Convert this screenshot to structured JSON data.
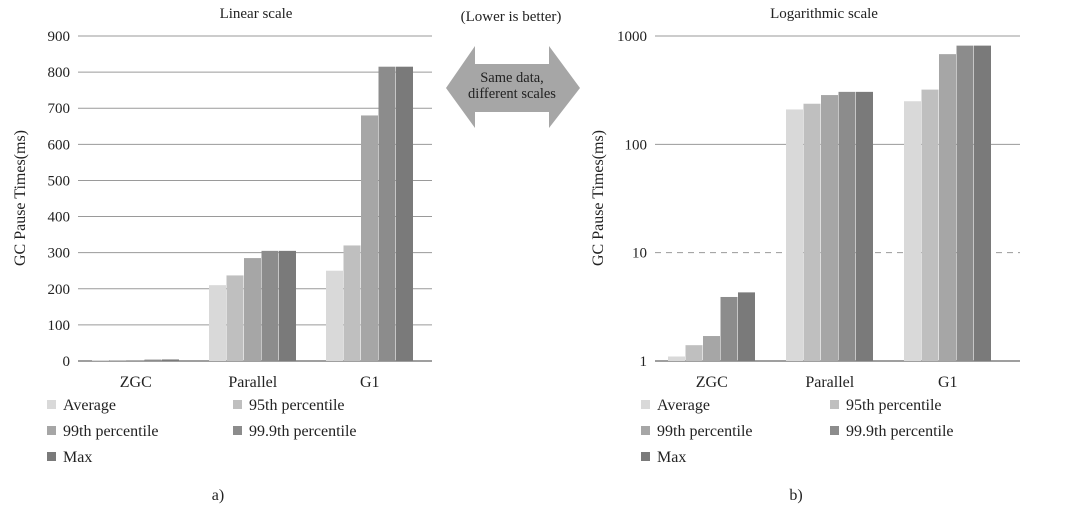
{
  "center_note": "(Lower is better)",
  "arrow": {
    "line1": "Same data,",
    "line2": "different scales",
    "fill": "#a6a6a6"
  },
  "series_colors": [
    "#d9d9d9",
    "#bfbfbf",
    "#a6a6a6",
    "#8c8c8c",
    "#7a7a7a"
  ],
  "chart_data": [
    {
      "type": "bar",
      "title": "Linear scale",
      "ylabel": "GC Pause Times(ms)",
      "panel_label": "a)",
      "yscale": "linear",
      "ylim": [
        0,
        900
      ],
      "yticks": [
        "900",
        "800",
        "700",
        "600",
        "500",
        "400",
        "300",
        "200",
        "100",
        "0"
      ],
      "ytick_values": [
        900,
        800,
        700,
        600,
        500,
        400,
        300,
        200,
        100,
        0
      ],
      "grid": true,
      "categories": [
        "ZGC",
        "Parallel",
        "G1"
      ],
      "series": [
        {
          "name": "Average",
          "values": [
            1.1,
            210,
            250
          ]
        },
        {
          "name": "95th percentile",
          "values": [
            1.4,
            237,
            320
          ]
        },
        {
          "name": "99th percentile",
          "values": [
            1.7,
            285,
            680
          ]
        },
        {
          "name": "99.9th percentile",
          "values": [
            3.9,
            305,
            815
          ]
        },
        {
          "name": "Max",
          "values": [
            4.3,
            305,
            815
          ]
        }
      ],
      "legend_position": "bottom"
    },
    {
      "type": "bar",
      "title": "Logarithmic scale",
      "ylabel": "GC Pause Times(ms)",
      "panel_label": "b)",
      "yscale": "log",
      "ylim": [
        1,
        1000
      ],
      "yticks": [
        "1000",
        "100",
        "10",
        "1"
      ],
      "ytick_values": [
        1000,
        100,
        10,
        1
      ],
      "grid": true,
      "categories": [
        "ZGC",
        "Parallel",
        "G1"
      ],
      "series": [
        {
          "name": "Average",
          "values": [
            1.1,
            210,
            250
          ]
        },
        {
          "name": "95th percentile",
          "values": [
            1.4,
            237,
            320
          ]
        },
        {
          "name": "99th percentile",
          "values": [
            1.7,
            285,
            680
          ]
        },
        {
          "name": "99.9th percentile",
          "values": [
            3.9,
            305,
            815
          ]
        },
        {
          "name": "Max",
          "values": [
            4.3,
            305,
            815
          ]
        }
      ],
      "legend_position": "bottom"
    }
  ]
}
